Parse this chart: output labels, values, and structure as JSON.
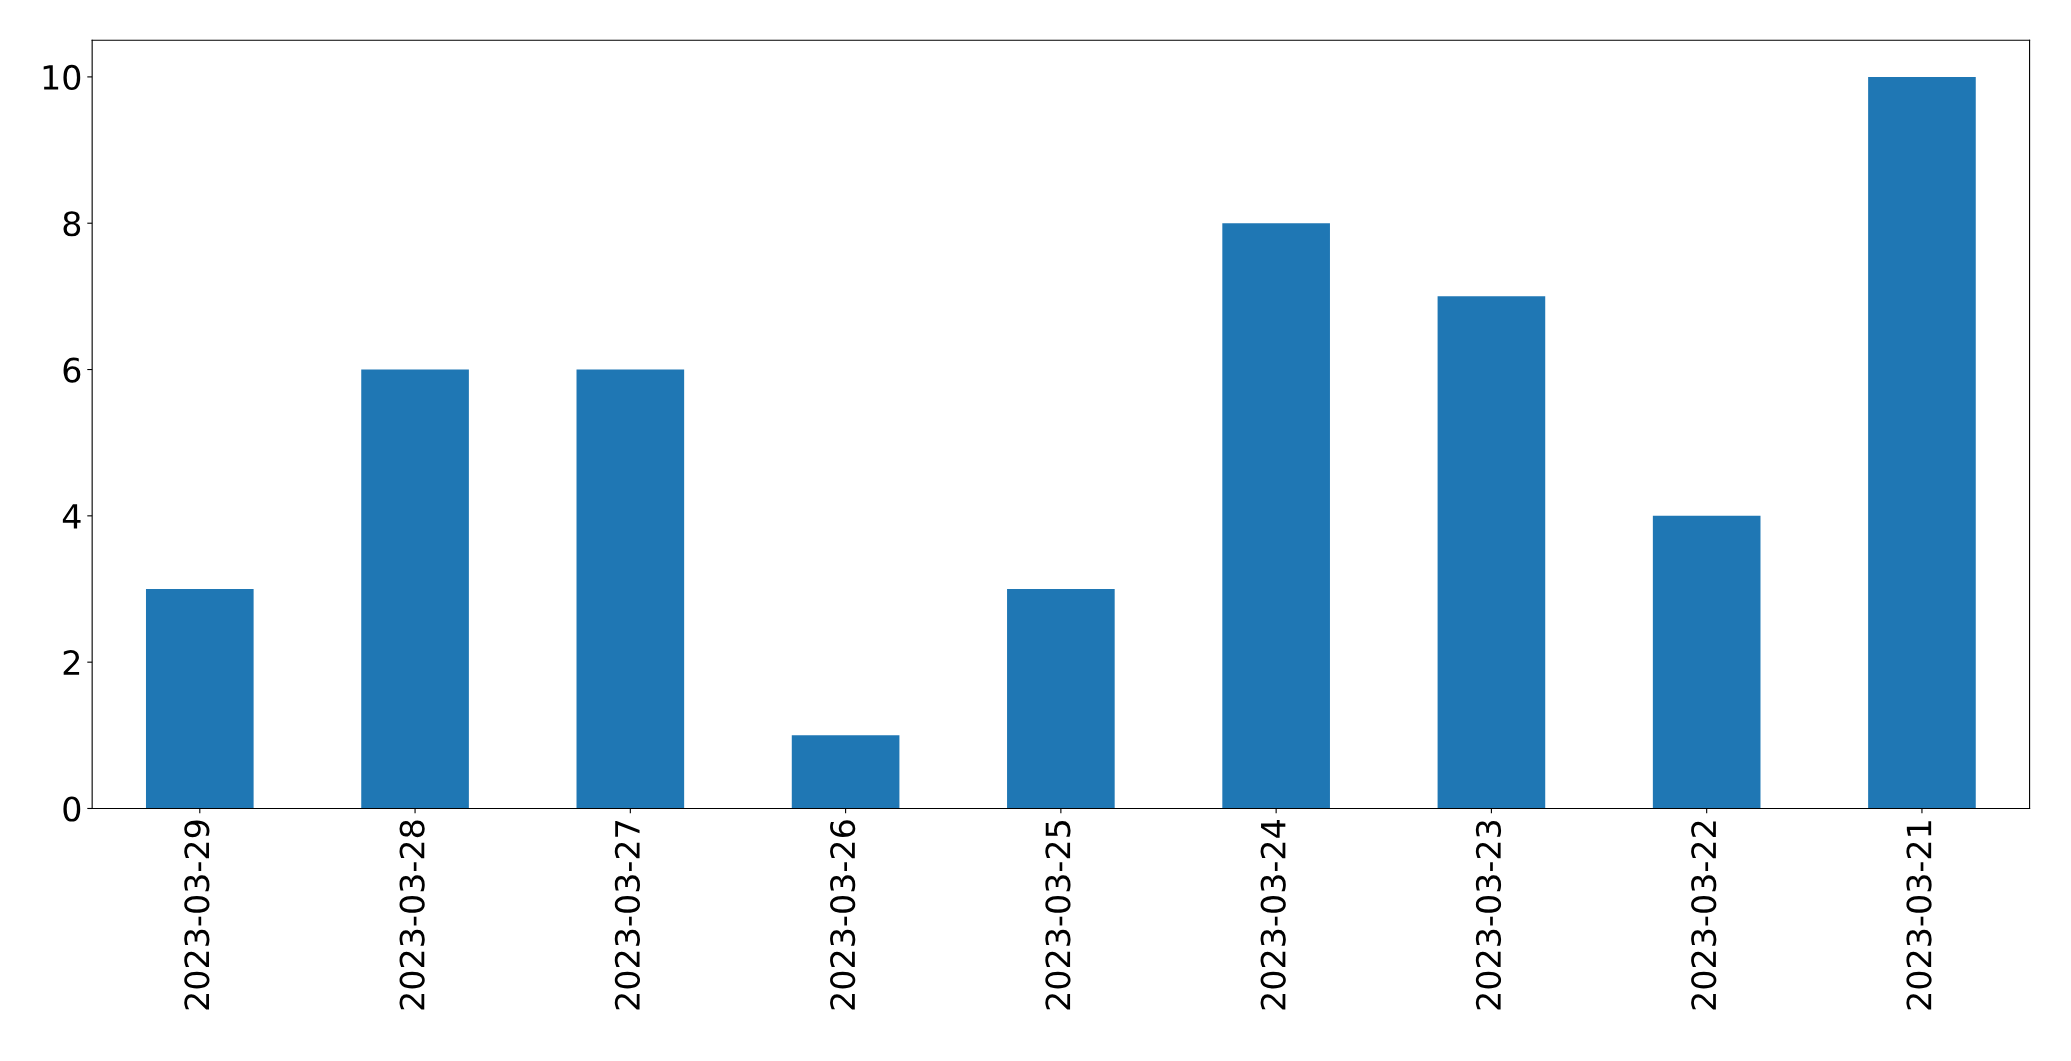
{
  "chart_data": {
    "type": "bar",
    "categories": [
      "2023-03-29",
      "2023-03-28",
      "2023-03-27",
      "2023-03-26",
      "2023-03-25",
      "2023-03-24",
      "2023-03-23",
      "2023-03-22",
      "2023-03-21"
    ],
    "values": [
      3,
      6,
      6,
      1,
      3,
      8,
      7,
      4,
      10
    ],
    "color": "#1f77b4",
    "ylim": [
      0,
      10.5
    ],
    "yticks": [
      0,
      2,
      4,
      6,
      8,
      10
    ],
    "grid": false,
    "legend": false
  }
}
